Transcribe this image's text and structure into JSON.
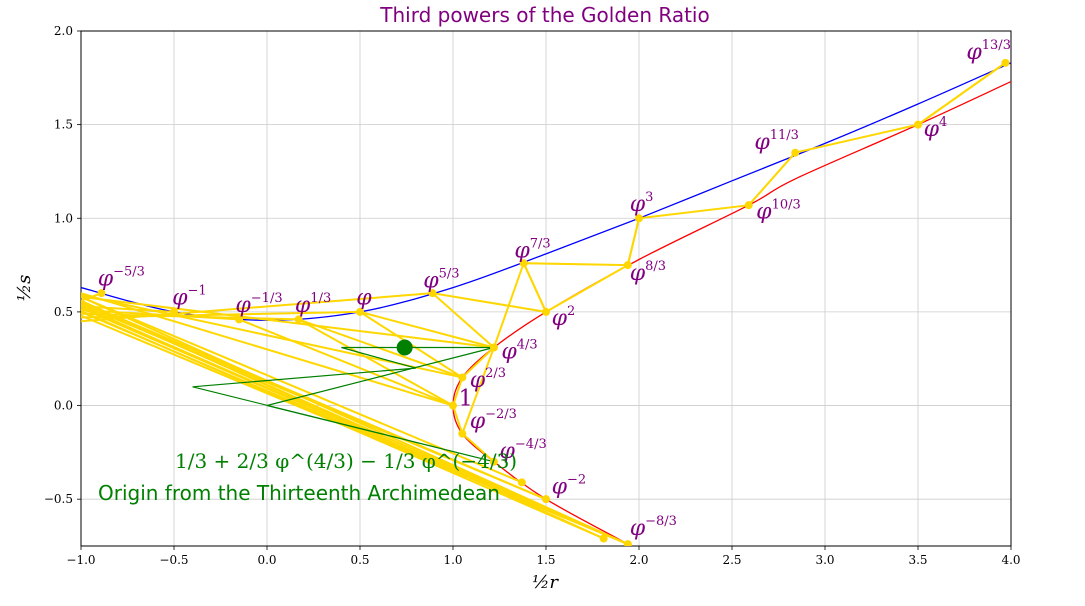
{
  "chart_data": {
    "type": "line",
    "title": "Third powers of the Golden Ratio",
    "xlabel": "½r",
    "ylabel": "½s",
    "xlim": [
      -1.0,
      4.0
    ],
    "ylim": [
      -0.75,
      2.0
    ],
    "grid": true,
    "x_ticks": [
      -1.0,
      -0.5,
      0.0,
      0.5,
      1.0,
      1.5,
      2.0,
      2.5,
      3.0,
      3.5,
      4.0
    ],
    "x_tick_labels": [
      "−1.0",
      "−0.5",
      "0.0",
      "0.5",
      "1.0",
      "1.5",
      "2.0",
      "2.5",
      "3.0",
      "3.5",
      "4.0"
    ],
    "y_ticks": [
      -0.5,
      0.0,
      0.5,
      1.0,
      1.5,
      2.0
    ],
    "y_tick_labels": [
      "−0.5",
      "0.0",
      "0.5",
      "1.0",
      "1.5",
      "2.0"
    ],
    "colors": {
      "blue_curve": "#0000ff",
      "red_curve": "#ff0000",
      "gold": "#ffd700",
      "green": "#008000",
      "label": "#800080"
    },
    "points": [
      {
        "name": "phi_-8/3",
        "x": 1.94,
        "y": -0.74,
        "base": "φ",
        "exp": "−8/3",
        "lx": 1.95,
        "ly": -0.69
      },
      {
        "name": "phi_-7/3",
        "x": 1.81,
        "y": -0.71,
        "base": "",
        "exp": "",
        "lx": 0,
        "ly": 0
      },
      {
        "name": "phi_-2",
        "x": 1.5,
        "y": -0.5,
        "base": "φ",
        "exp": "−2",
        "lx": 1.53,
        "ly": -0.47
      },
      {
        "name": "phi_-5/3",
        "x": 1.37,
        "y": -0.41,
        "base": "",
        "exp": "",
        "lx": 0,
        "ly": 0
      },
      {
        "name": "phi_-4/3",
        "x": 1.22,
        "y": -0.3,
        "base": "φ",
        "exp": "−4/3",
        "lx": 1.25,
        "ly": -0.28
      },
      {
        "name": "phi_-2/3",
        "x": 1.05,
        "y": -0.15,
        "base": "φ",
        "exp": "−2/3",
        "lx": 1.09,
        "ly": -0.12
      },
      {
        "name": "phi_0",
        "x": 1.0,
        "y": 0.0,
        "base": "1",
        "exp": "",
        "lx": 1.03,
        "ly": 0.0
      },
      {
        "name": "phi_2/3",
        "x": 1.05,
        "y": 0.15,
        "base": "φ",
        "exp": "2/3",
        "lx": 1.09,
        "ly": 0.1
      },
      {
        "name": "phi_4/3",
        "x": 1.22,
        "y": 0.31,
        "base": "φ",
        "exp": "4/3",
        "lx": 1.26,
        "ly": 0.25
      },
      {
        "name": "phi_2",
        "x": 1.5,
        "y": 0.5,
        "base": "φ",
        "exp": "2",
        "lx": 1.53,
        "ly": 0.43
      },
      {
        "name": "phi_8/3",
        "x": 1.94,
        "y": 0.75,
        "base": "φ",
        "exp": "8/3",
        "lx": 1.95,
        "ly": 0.67
      },
      {
        "name": "phi_10/3",
        "x": 2.59,
        "y": 1.07,
        "base": "φ",
        "exp": "10/3",
        "lx": 2.63,
        "ly": 1.0
      },
      {
        "name": "phi_4",
        "x": 3.5,
        "y": 1.5,
        "base": "φ",
        "exp": "4",
        "lx": 3.53,
        "ly": 1.44
      },
      {
        "name": "phi_13/3",
        "x": 3.97,
        "y": 1.83,
        "base": "φ",
        "exp": "13/3",
        "lx": 3.76,
        "ly": 1.85
      },
      {
        "name": "phi_11/3",
        "x": 2.84,
        "y": 1.35,
        "base": "φ",
        "exp": "11/3",
        "lx": 2.62,
        "ly": 1.37
      },
      {
        "name": "phi_3",
        "x": 2.0,
        "y": 1.0,
        "base": "φ",
        "exp": "3",
        "lx": 1.95,
        "ly": 1.04
      },
      {
        "name": "phi_7/3",
        "x": 1.38,
        "y": 0.76,
        "base": "φ",
        "exp": "7/3",
        "lx": 1.33,
        "ly": 0.79
      },
      {
        "name": "phi_5/3",
        "x": 0.89,
        "y": 0.6,
        "base": "φ",
        "exp": "5/3",
        "lx": 0.84,
        "ly": 0.63
      },
      {
        "name": "phi_1",
        "x": 0.5,
        "y": 0.5,
        "base": "φ",
        "exp": "",
        "lx": 0.48,
        "ly": 0.54
      },
      {
        "name": "phi_1/3",
        "x": 0.17,
        "y": 0.46,
        "base": "φ",
        "exp": "1/3",
        "lx": 0.15,
        "ly": 0.5
      },
      {
        "name": "phi_-1/3",
        "x": -0.15,
        "y": 0.46,
        "base": "φ",
        "exp": "−1/3",
        "lx": -0.17,
        "ly": 0.5
      },
      {
        "name": "phi_-1",
        "x": -0.5,
        "y": 0.5,
        "base": "φ",
        "exp": "−1",
        "lx": -0.51,
        "ly": 0.54
      },
      {
        "name": "phi_-5/3",
        "x": -0.89,
        "y": 0.6,
        "base": "φ",
        "exp": "−5/3",
        "lx": -0.91,
        "ly": 0.64
      }
    ],
    "gold_path": [
      [
        3.97,
        1.83
      ],
      [
        3.5,
        1.5
      ],
      [
        2.84,
        1.35
      ],
      [
        2.59,
        1.07
      ],
      [
        2.0,
        1.0
      ],
      [
        1.94,
        0.75
      ],
      [
        1.38,
        0.76
      ],
      [
        1.5,
        0.5
      ],
      [
        0.89,
        0.6
      ],
      [
        1.22,
        0.31
      ],
      [
        0.5,
        0.5
      ],
      [
        1.05,
        0.15
      ],
      [
        0.17,
        0.46
      ],
      [
        1.0,
        0.0
      ],
      [
        -0.15,
        0.46
      ]
    ],
    "gold_segments": [
      [
        [
          3.97,
          1.83
        ],
        [
          3.5,
          1.5
        ]
      ],
      [
        [
          2.0,
          1.0
        ],
        [
          1.94,
          0.75
        ]
      ],
      [
        [
          1.38,
          0.76
        ],
        [
          1.5,
          0.5
        ]
      ],
      [
        [
          1.38,
          0.76
        ],
        [
          1.22,
          0.31
        ]
      ],
      [
        [
          1.94,
          0.75
        ],
        [
          1.5,
          0.5
        ]
      ],
      [
        [
          1.22,
          0.31
        ],
        [
          1.05,
          0.15
        ]
      ],
      [
        [
          1.05,
          0.15
        ],
        [
          1.0,
          0.0
        ]
      ],
      [
        [
          1.22,
          0.31
        ],
        [
          1.05,
          -0.15
        ]
      ],
      [
        [
          1.05,
          -0.15
        ],
        [
          1.0,
          0.0
        ]
      ],
      [
        [
          1.22,
          -0.3
        ],
        [
          1.05,
          -0.15
        ]
      ]
    ],
    "gold_fan_lines": [
      [
        [
          -0.89,
          0.6
        ],
        [
          -1.0,
          0.56
        ]
      ],
      [
        [
          -0.5,
          0.5
        ],
        [
          -1.0,
          0.53
        ]
      ],
      [
        [
          -0.15,
          0.46
        ],
        [
          -1.0,
          0.51
        ]
      ],
      [
        [
          0.17,
          0.46
        ],
        [
          -1.0,
          0.49
        ]
      ],
      [
        [
          0.5,
          0.5
        ],
        [
          -1.0,
          0.47
        ]
      ],
      [
        [
          0.89,
          0.6
        ],
        [
          -1.0,
          0.45
        ]
      ],
      [
        [
          1.22,
          0.31
        ],
        [
          -1.0,
          0.58
        ]
      ],
      [
        [
          1.05,
          0.15
        ],
        [
          -1.0,
          0.59
        ]
      ],
      [
        [
          1.0,
          0.0
        ],
        [
          -1.0,
          0.6
        ]
      ],
      [
        [
          1.94,
          -0.74
        ],
        [
          -1.0,
          0.58
        ]
      ],
      [
        [
          1.81,
          -0.71
        ],
        [
          -1.0,
          0.56
        ]
      ],
      [
        [
          1.5,
          -0.5
        ],
        [
          -1.0,
          0.54
        ]
      ],
      [
        [
          1.94,
          -0.74
        ],
        [
          -1.0,
          0.52
        ]
      ],
      [
        [
          1.94,
          -0.74
        ],
        [
          -1.0,
          0.5
        ]
      ],
      [
        [
          1.94,
          -0.74
        ],
        [
          -1.0,
          0.55
        ]
      ]
    ],
    "green_polygon": [
      [
        0.0,
        0.0
      ],
      [
        1.22,
        0.31
      ],
      [
        0.4,
        0.31
      ],
      [
        0.8,
        0.2
      ],
      [
        -0.4,
        0.1
      ],
      [
        1.22,
        -0.3
      ],
      [
        0.0,
        0.0
      ]
    ],
    "green_dot": [
      0.74,
      0.31
    ],
    "formula_text": "1/3 + 2/3 φ^(4/3) − 1/3 φ^(−4/3)",
    "annotation": "Origin from the Thirteenth Archimedean"
  }
}
